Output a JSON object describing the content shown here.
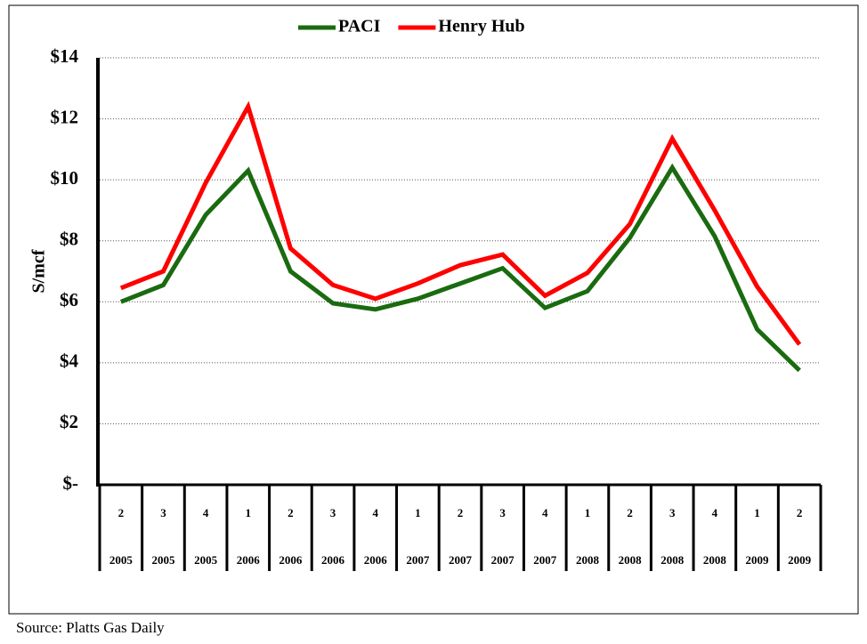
{
  "chart_data": {
    "type": "line",
    "y_axis_label": "S/mcf",
    "source": "Source:  Platts Gas Daily",
    "categories": [
      "2",
      "3",
      "4",
      "1",
      "2",
      "3",
      "4",
      "1",
      "2",
      "3",
      "4",
      "1",
      "2",
      "3",
      "4",
      "1",
      "2"
    ],
    "category_years": [
      "2005",
      "2005",
      "2005",
      "2006",
      "2006",
      "2006",
      "2006",
      "2007",
      "2007",
      "2007",
      "2007",
      "2008",
      "2008",
      "2008",
      "2008",
      "2009",
      "2009"
    ],
    "series": [
      {
        "name": "PACI",
        "color": "#1a6b10",
        "values": [
          6.0,
          6.55,
          8.85,
          10.3,
          7.0,
          5.95,
          5.75,
          6.1,
          6.6,
          7.1,
          5.8,
          6.35,
          8.1,
          10.4,
          8.15,
          5.1,
          3.75
        ]
      },
      {
        "name": "Henry Hub",
        "color": "#ff0000",
        "values": [
          6.45,
          7.0,
          9.9,
          12.4,
          7.75,
          6.55,
          6.1,
          6.6,
          7.2,
          7.55,
          6.2,
          6.95,
          8.55,
          11.35,
          9.0,
          6.5,
          4.6
        ]
      }
    ],
    "ylim": [
      0,
      14
    ],
    "yticks": [
      {
        "value": 0,
        "label": "$-"
      },
      {
        "value": 2,
        "label": "$2"
      },
      {
        "value": 4,
        "label": "$4"
      },
      {
        "value": 6,
        "label": "$6"
      },
      {
        "value": 8,
        "label": "$8"
      },
      {
        "value": 10,
        "label": "$10"
      },
      {
        "value": 12,
        "label": "$12"
      },
      {
        "value": 14,
        "label": "$14"
      }
    ],
    "grid": true
  }
}
